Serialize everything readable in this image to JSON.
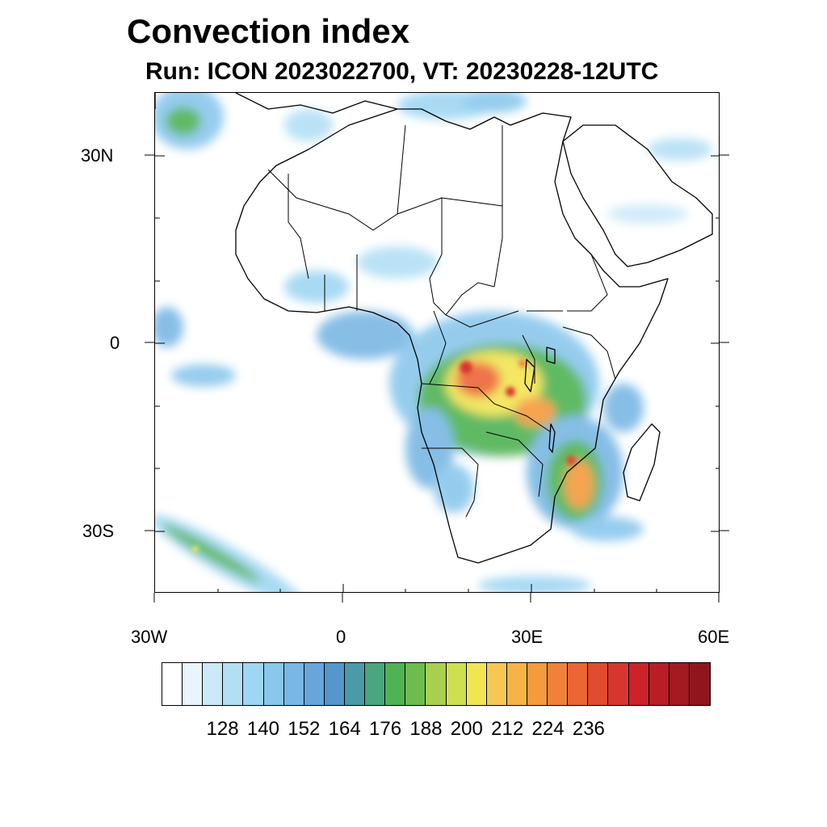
{
  "title": "Convection index",
  "subtitle": "Run: ICON 2023022700,  VT: 20230228-12UTC",
  "axes": {
    "x_ticks": [
      "30W",
      "0",
      "30E",
      "60E"
    ],
    "y_ticks": [
      "30N",
      "0",
      "30S"
    ],
    "lon_range": [
      -30,
      60
    ],
    "lat_range": [
      -40,
      40
    ]
  },
  "colorbar": {
    "labels": [
      "128",
      "140",
      "152",
      "164",
      "176",
      "188",
      "200",
      "212",
      "224",
      "236"
    ],
    "colors": [
      "#ffffff",
      "#e8f5fc",
      "#cce9f7",
      "#b3dff5",
      "#9fd6f3",
      "#8ac7ec",
      "#79b7e4",
      "#66a6dc",
      "#5596cc",
      "#4a9aa8",
      "#4aa67c",
      "#4fb353",
      "#6cbd4e",
      "#a9cf4f",
      "#cfe04f",
      "#f2e552",
      "#f6c852",
      "#f7b446",
      "#f59a3d",
      "#f1813a",
      "#ec6534",
      "#e04c30",
      "#d8352e",
      "#cc2229",
      "#b71e25",
      "#a31a20",
      "#8f161c"
    ]
  }
}
